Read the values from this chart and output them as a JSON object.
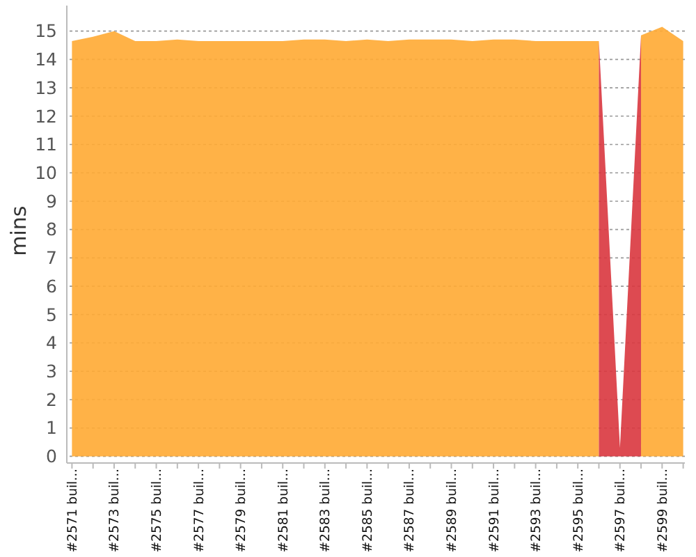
{
  "chart_data": {
    "type": "area",
    "ylabel": "mins",
    "categories": [
      "#2571 buil...",
      null,
      "#2573 buil...",
      null,
      "#2575 buil...",
      null,
      "#2577 buil...",
      null,
      "#2579 buil...",
      null,
      "#2581 buil...",
      null,
      "#2583 buil...",
      null,
      "#2585 buil...",
      null,
      "#2587 buil...",
      null,
      "#2589 buil...",
      null,
      "#2591 buil...",
      null,
      "#2593 buil...",
      null,
      "#2595 buil...",
      null,
      "#2597 buil...",
      null,
      "#2599 buil...",
      null
    ],
    "series": [
      {
        "color": "#ffaa33",
        "values": [
          14.65,
          14.8,
          15.0,
          14.65,
          14.65,
          14.7,
          14.65,
          14.65,
          14.65,
          14.65,
          14.65,
          14.7,
          14.7,
          14.65,
          14.7,
          14.65,
          14.7,
          14.7,
          14.7,
          14.65,
          14.7,
          14.7,
          14.65,
          14.65,
          14.65,
          14.65,
          null,
          14.85,
          15.15,
          14.65
        ]
      },
      {
        "color": "#d9363e",
        "values": [
          null,
          null,
          null,
          null,
          null,
          null,
          null,
          null,
          null,
          null,
          null,
          null,
          null,
          null,
          null,
          null,
          null,
          null,
          null,
          null,
          null,
          null,
          null,
          null,
          null,
          14.65,
          0.3,
          14.85,
          null,
          null
        ]
      }
    ],
    "ylim": [
      0,
      15.9
    ],
    "yticks": [
      0,
      1,
      2,
      3,
      4,
      5,
      6,
      7,
      8,
      9,
      10,
      11,
      12,
      13,
      14,
      15
    ],
    "grid": "y"
  }
}
